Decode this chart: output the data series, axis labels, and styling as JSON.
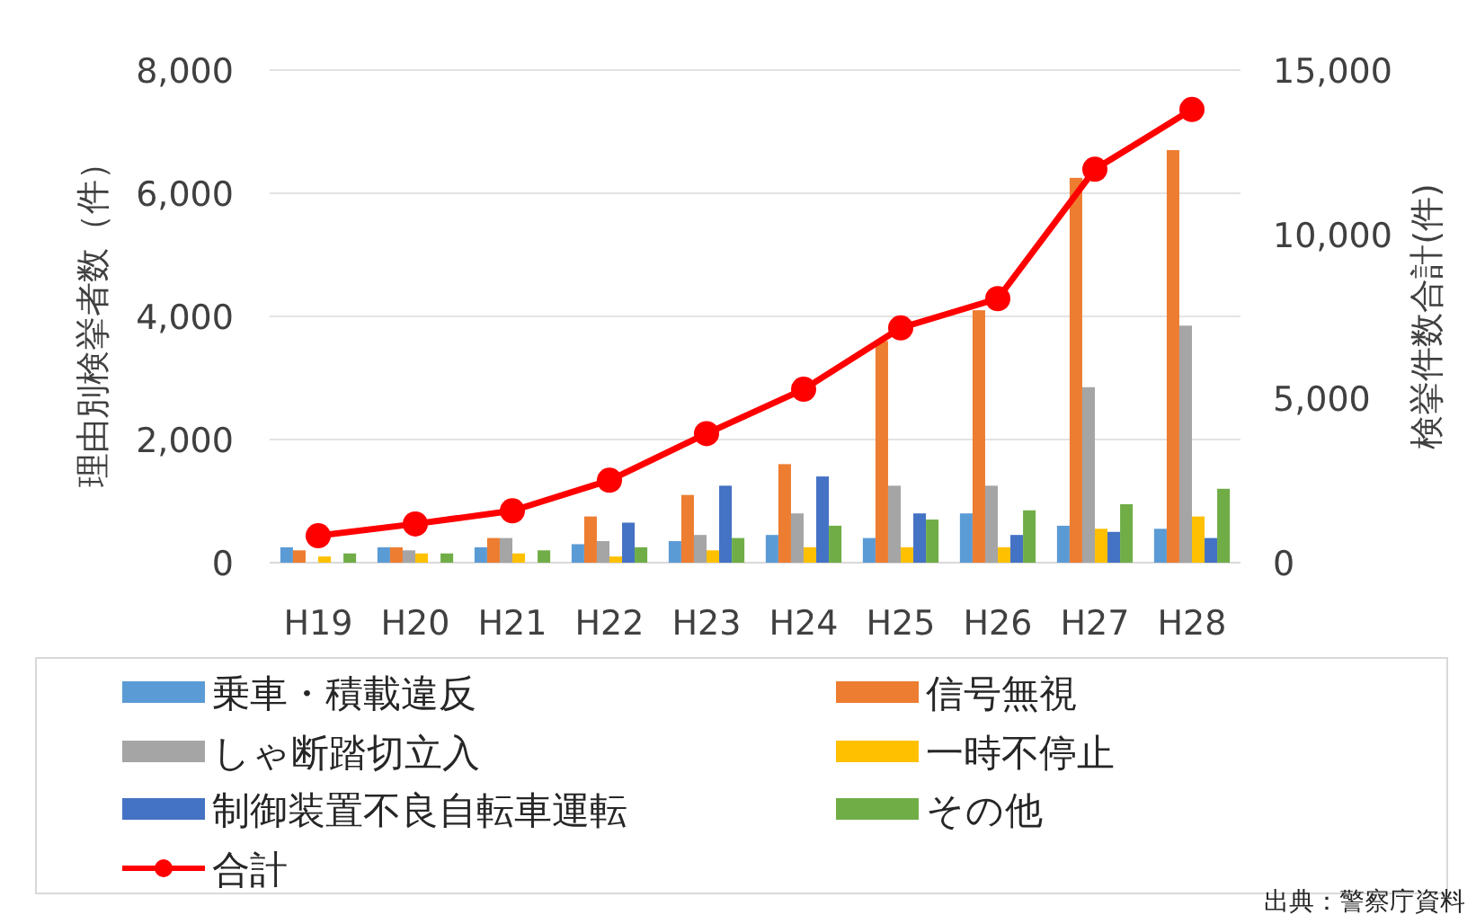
{
  "chart_data": {
    "type": "bar",
    "ylabel": "理由別検挙者数（件）",
    "y2label": "検挙件数合計(件)",
    "categories": [
      "H19",
      "H20",
      "H21",
      "H22",
      "H23",
      "H24",
      "H25",
      "H26",
      "H27",
      "H28"
    ],
    "series": [
      {
        "name": "乗車・積載違反",
        "color": "#5b9bd5",
        "values": [
          250,
          250,
          250,
          300,
          350,
          450,
          400,
          800,
          600,
          550
        ]
      },
      {
        "name": "信号無視",
        "color": "#ed7d31",
        "values": [
          200,
          250,
          400,
          750,
          1100,
          1600,
          3600,
          4100,
          6250,
          6700
        ]
      },
      {
        "name": "しゃ断踏切立入",
        "color": "#a5a5a5",
        "values": [
          null,
          200,
          400,
          350,
          450,
          800,
          1250,
          1250,
          2850,
          3850
        ]
      },
      {
        "name": "一時不停止",
        "color": "#ffc000",
        "values": [
          100,
          150,
          150,
          100,
          200,
          250,
          250,
          250,
          550,
          750
        ]
      },
      {
        "name": "制御装置不良自転車運転",
        "color": "#4472c4",
        "values": [
          0,
          0,
          0,
          650,
          1250,
          1400,
          800,
          450,
          500,
          400
        ]
      },
      {
        "name": "その他",
        "color": "#70ad47",
        "values": [
          150,
          150,
          200,
          250,
          400,
          600,
          700,
          850,
          950,
          1200
        ]
      },
      {
        "name": "合計",
        "type": "line",
        "axis": "y2",
        "color": "#ff0000",
        "marker": "circle",
        "values": [
          820,
          1180,
          1580,
          2510,
          3930,
          5280,
          7150,
          8040,
          11980,
          13800
        ]
      }
    ],
    "ylim": [
      0,
      8000
    ],
    "yticks": [
      {
        "value": 0,
        "label": "0"
      },
      {
        "value": 2000,
        "label": "2,000"
      },
      {
        "value": 4000,
        "label": "4,000"
      },
      {
        "value": 6000,
        "label": "6,000"
      },
      {
        "value": 8000,
        "label": "8,000"
      }
    ],
    "y2lim": [
      0,
      15000
    ],
    "y2ticks": [
      {
        "value": 0,
        "label": "0"
      },
      {
        "value": 5000,
        "label": "5,000"
      },
      {
        "value": 10000,
        "label": "10,000"
      },
      {
        "value": 15000,
        "label": "15,000"
      }
    ],
    "grid": "y",
    "legend": "bottom",
    "annotations": [
      "出典：警察庁資料"
    ]
  }
}
